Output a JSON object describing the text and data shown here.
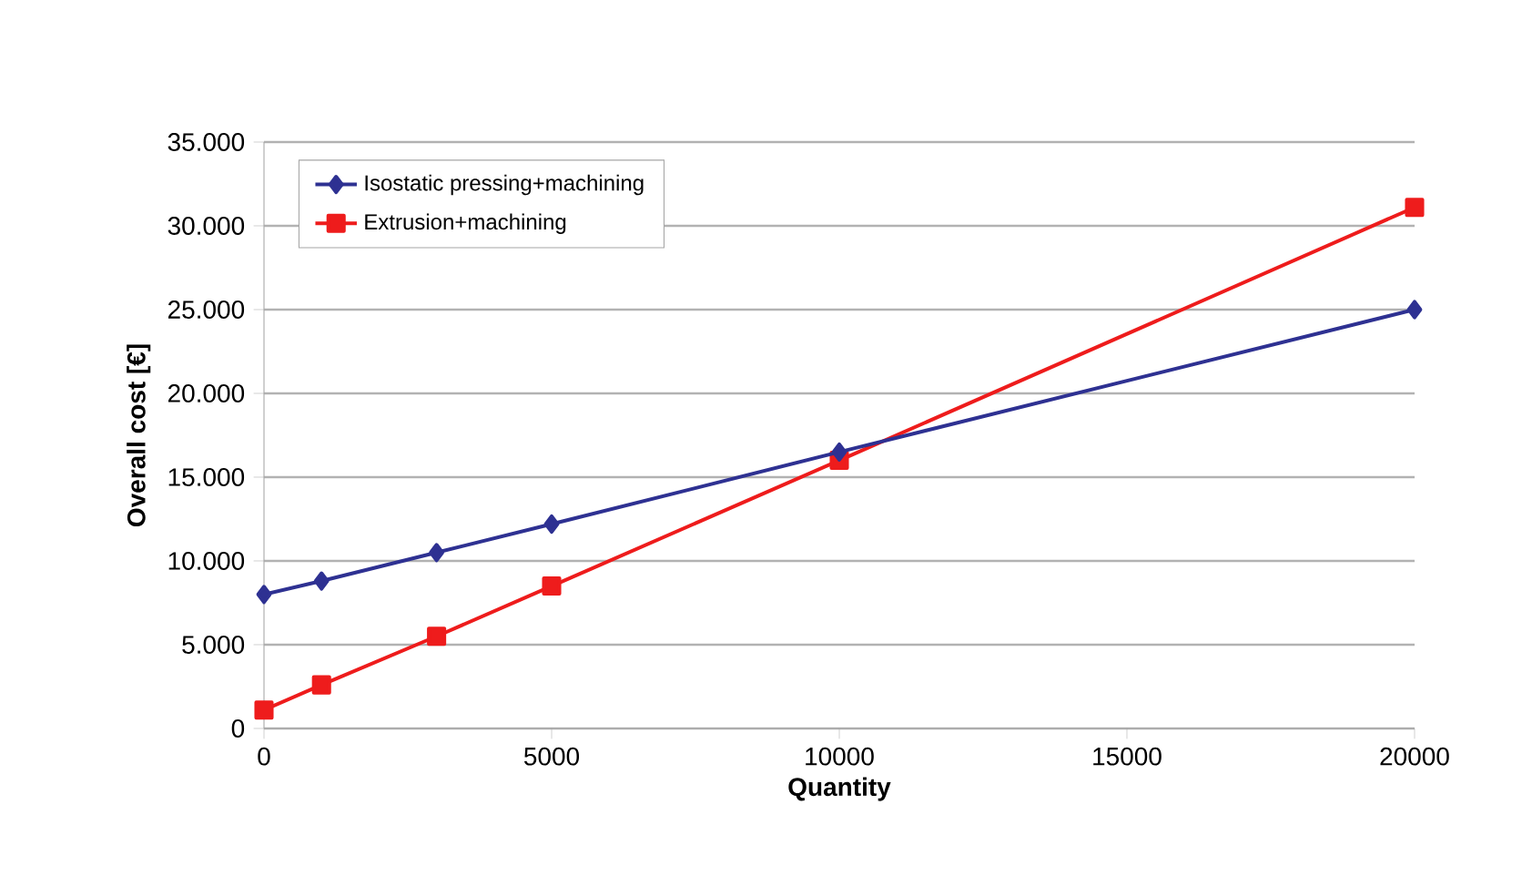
{
  "chart_data": {
    "type": "line",
    "xlabel": "Quantity",
    "ylabel": "Overall cost [€]",
    "x": [
      0,
      1000,
      3000,
      5000,
      10000,
      20000
    ],
    "series": [
      {
        "name": "Isostatic pressing+machining",
        "color": "#2e3192",
        "marker": "diamond",
        "values": [
          8000,
          8800,
          10500,
          12200,
          16500,
          25000
        ]
      },
      {
        "name": "Extrusion+machining",
        "color": "#ee1c1c",
        "marker": "square",
        "values": [
          1100,
          2600,
          5500,
          8500,
          16000,
          31100
        ]
      }
    ],
    "xlim": [
      0,
      20000
    ],
    "xticks": [
      0,
      5000,
      10000,
      15000,
      20000
    ],
    "ylim": [
      0,
      35000
    ],
    "yticks": [
      0,
      {
        "value": 5000,
        "label": "5.000"
      },
      {
        "value": 10000,
        "label": "10.000"
      },
      {
        "value": 15000,
        "label": "15.000"
      },
      {
        "value": 20000,
        "label": "20.000"
      },
      {
        "value": 25000,
        "label": "25.000"
      },
      {
        "value": 30000,
        "label": "30.000"
      },
      {
        "value": 35000,
        "label": "35.000"
      }
    ],
    "grid": "y",
    "legend": "top left",
    "line_style": "solid"
  }
}
